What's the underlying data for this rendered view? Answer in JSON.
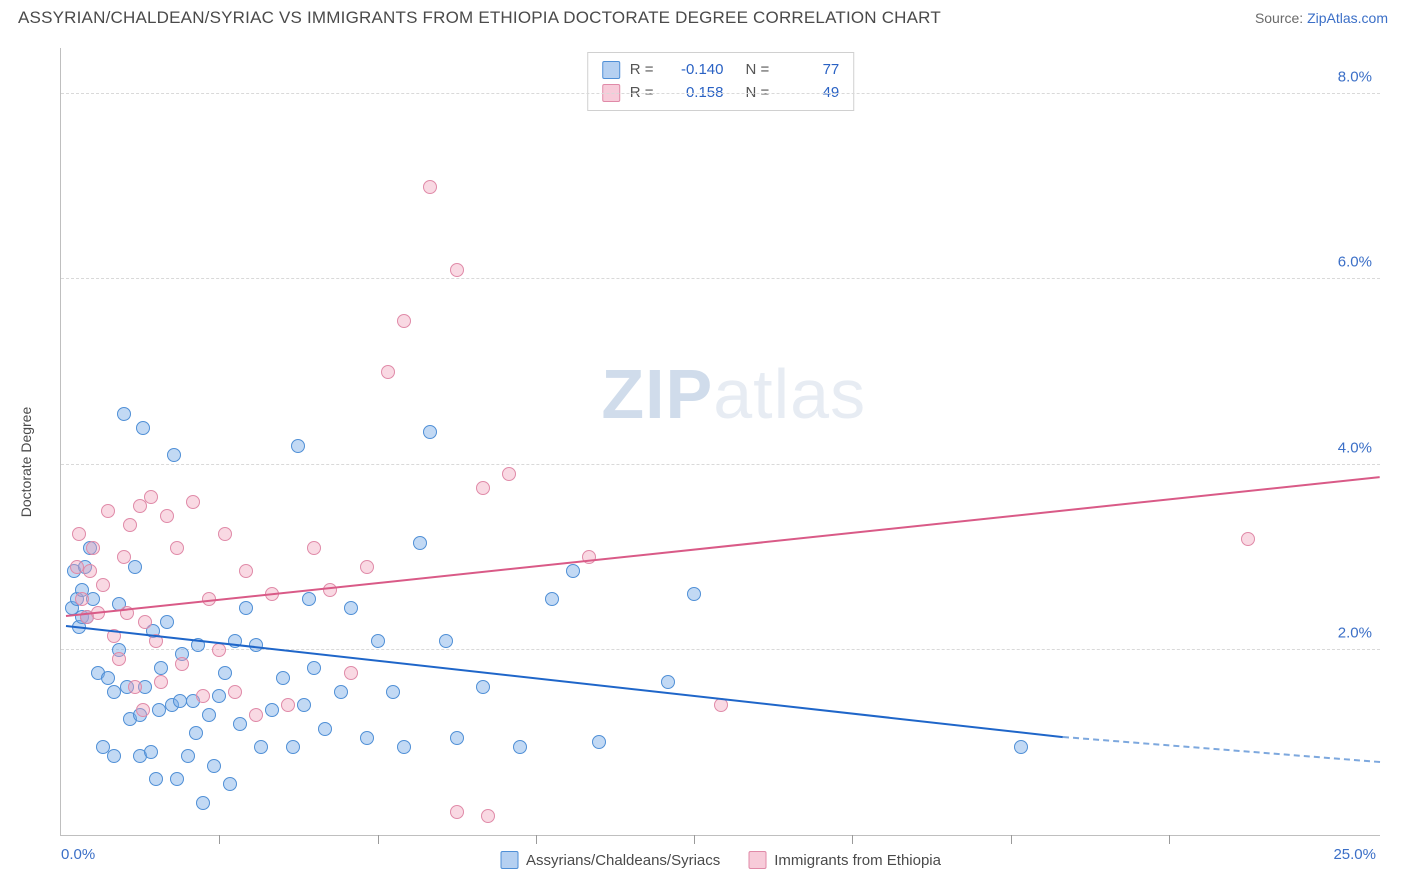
{
  "title": "ASSYRIAN/CHALDEAN/SYRIAC VS IMMIGRANTS FROM ETHIOPIA DOCTORATE DEGREE CORRELATION CHART",
  "source_label": "Source: ",
  "source_name": "ZipAtlas.com",
  "watermark_light": "atlas",
  "watermark_bold": "ZIP",
  "chart": {
    "type": "scatter",
    "xlim": [
      0,
      25
    ],
    "ylim": [
      0,
      8.5
    ],
    "x_origin_label": "0.0%",
    "x_max_label": "25.0%",
    "y_ticks": [
      2.0,
      4.0,
      6.0,
      8.0
    ],
    "y_tick_labels": [
      "2.0%",
      "4.0%",
      "6.0%",
      "8.0%"
    ],
    "x_ticks": [
      3,
      6,
      9,
      12,
      15,
      18,
      21
    ],
    "grid_color": "#d9d9d9",
    "axis_color": "#bfbfbf",
    "background_color": "#ffffff",
    "tick_label_color": "#3b6fc7",
    "ylabel": "Doctorate Degree",
    "marker_size": 14,
    "series": [
      {
        "key": "blue",
        "name": "Assyrians/Chaldeans/Syriacs",
        "fill": "rgba(120,170,230,0.45)",
        "stroke": "#4f8fd6",
        "trend_color": "#1f66c9",
        "trend": {
          "x0": 0.1,
          "y0": 2.25,
          "x1": 19.0,
          "y1": 1.05,
          "dash_x1": 25.0,
          "dash_y1": 0.78
        },
        "R": "-0.140",
        "N": "77",
        "points": [
          [
            0.2,
            2.45
          ],
          [
            0.25,
            2.85
          ],
          [
            0.3,
            2.55
          ],
          [
            0.35,
            2.25
          ],
          [
            0.4,
            2.35
          ],
          [
            0.4,
            2.65
          ],
          [
            0.45,
            2.9
          ],
          [
            0.5,
            2.35
          ],
          [
            0.55,
            3.1
          ],
          [
            0.6,
            2.55
          ],
          [
            0.7,
            1.75
          ],
          [
            0.8,
            0.95
          ],
          [
            0.9,
            1.7
          ],
          [
            1.0,
            0.85
          ],
          [
            1.0,
            1.55
          ],
          [
            1.1,
            2.0
          ],
          [
            1.1,
            2.5
          ],
          [
            1.2,
            4.55
          ],
          [
            1.25,
            1.6
          ],
          [
            1.3,
            1.25
          ],
          [
            1.4,
            2.9
          ],
          [
            1.5,
            0.85
          ],
          [
            1.5,
            1.3
          ],
          [
            1.55,
            4.4
          ],
          [
            1.6,
            1.6
          ],
          [
            1.7,
            0.9
          ],
          [
            1.75,
            2.2
          ],
          [
            1.8,
            0.6
          ],
          [
            1.85,
            1.35
          ],
          [
            1.9,
            1.8
          ],
          [
            2.0,
            2.3
          ],
          [
            2.1,
            1.4
          ],
          [
            2.15,
            4.1
          ],
          [
            2.2,
            0.6
          ],
          [
            2.25,
            1.45
          ],
          [
            2.3,
            1.95
          ],
          [
            2.4,
            0.85
          ],
          [
            2.5,
            1.45
          ],
          [
            2.55,
            1.1
          ],
          [
            2.6,
            2.05
          ],
          [
            2.7,
            0.35
          ],
          [
            2.8,
            1.3
          ],
          [
            2.9,
            0.75
          ],
          [
            3.0,
            1.5
          ],
          [
            3.1,
            1.75
          ],
          [
            3.2,
            0.55
          ],
          [
            3.3,
            2.1
          ],
          [
            3.4,
            1.2
          ],
          [
            3.5,
            2.45
          ],
          [
            3.7,
            2.05
          ],
          [
            3.8,
            0.95
          ],
          [
            4.0,
            1.35
          ],
          [
            4.2,
            1.7
          ],
          [
            4.4,
            0.95
          ],
          [
            4.5,
            4.2
          ],
          [
            4.6,
            1.4
          ],
          [
            4.7,
            2.55
          ],
          [
            4.8,
            1.8
          ],
          [
            5.0,
            1.15
          ],
          [
            5.3,
            1.55
          ],
          [
            5.5,
            2.45
          ],
          [
            5.8,
            1.05
          ],
          [
            6.0,
            2.1
          ],
          [
            6.3,
            1.55
          ],
          [
            6.5,
            0.95
          ],
          [
            6.8,
            3.15
          ],
          [
            7.0,
            4.35
          ],
          [
            7.3,
            2.1
          ],
          [
            7.5,
            1.05
          ],
          [
            8.0,
            1.6
          ],
          [
            8.7,
            0.95
          ],
          [
            9.3,
            2.55
          ],
          [
            9.7,
            2.85
          ],
          [
            10.2,
            1.0
          ],
          [
            11.5,
            1.65
          ],
          [
            12.0,
            2.6
          ],
          [
            18.2,
            0.95
          ]
        ]
      },
      {
        "key": "pink",
        "name": "Immigrants from Ethiopia",
        "fill": "rgba(240,160,185,0.40)",
        "stroke": "#e08aa8",
        "trend_color": "#d95a87",
        "trend": {
          "x0": 0.1,
          "y0": 2.35,
          "x1": 25.0,
          "y1": 3.85
        },
        "R": "0.158",
        "N": "49",
        "points": [
          [
            0.3,
            2.9
          ],
          [
            0.35,
            3.25
          ],
          [
            0.4,
            2.55
          ],
          [
            0.5,
            2.35
          ],
          [
            0.55,
            2.85
          ],
          [
            0.6,
            3.1
          ],
          [
            0.7,
            2.4
          ],
          [
            0.8,
            2.7
          ],
          [
            0.9,
            3.5
          ],
          [
            1.0,
            2.15
          ],
          [
            1.1,
            1.9
          ],
          [
            1.2,
            3.0
          ],
          [
            1.25,
            2.4
          ],
          [
            1.3,
            3.35
          ],
          [
            1.4,
            1.6
          ],
          [
            1.5,
            3.55
          ],
          [
            1.55,
            1.35
          ],
          [
            1.6,
            2.3
          ],
          [
            1.7,
            3.65
          ],
          [
            1.8,
            2.1
          ],
          [
            1.9,
            1.65
          ],
          [
            2.0,
            3.45
          ],
          [
            2.2,
            3.1
          ],
          [
            2.3,
            1.85
          ],
          [
            2.5,
            3.6
          ],
          [
            2.7,
            1.5
          ],
          [
            2.8,
            2.55
          ],
          [
            3.0,
            2.0
          ],
          [
            3.1,
            3.25
          ],
          [
            3.3,
            1.55
          ],
          [
            3.5,
            2.85
          ],
          [
            3.7,
            1.3
          ],
          [
            4.0,
            2.6
          ],
          [
            4.3,
            1.4
          ],
          [
            4.8,
            3.1
          ],
          [
            5.1,
            2.65
          ],
          [
            5.5,
            1.75
          ],
          [
            5.8,
            2.9
          ],
          [
            6.2,
            5.0
          ],
          [
            6.5,
            5.55
          ],
          [
            7.0,
            7.0
          ],
          [
            7.5,
            6.1
          ],
          [
            7.5,
            0.25
          ],
          [
            8.0,
            3.75
          ],
          [
            8.1,
            0.2
          ],
          [
            8.5,
            3.9
          ],
          [
            10.0,
            3.0
          ],
          [
            12.5,
            1.4
          ],
          [
            22.5,
            3.2
          ]
        ]
      }
    ],
    "legend_top": {
      "rows": [
        {
          "sw": "blue",
          "r_label": "R =",
          "r_val": "-0.140",
          "n_label": "N =",
          "n_val": "77"
        },
        {
          "sw": "pink",
          "r_label": "R =",
          "r_val": "0.158",
          "n_label": "N =",
          "n_val": "49"
        }
      ]
    },
    "legend_bottom": [
      {
        "sw": "blue",
        "label": "Assyrians/Chaldeans/Syriacs"
      },
      {
        "sw": "pink",
        "label": "Immigrants from Ethiopia"
      }
    ]
  }
}
